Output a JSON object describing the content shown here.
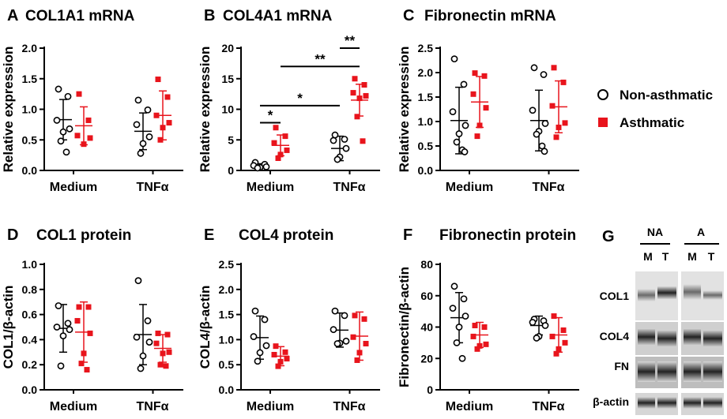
{
  "legend": {
    "non_asthmatic": "Non-asthmatic",
    "asthmatic": "Asthmatic",
    "colors": {
      "non_asthmatic": "#000000",
      "asthmatic": "#e8141c"
    }
  },
  "chart_data": [
    {
      "id": "A",
      "letter": "A",
      "type": "scatter",
      "title": "COL1A1 mRNA",
      "ylabel": "Relative expression",
      "ylim": [
        0,
        2.0
      ],
      "yticks": [
        "0.0",
        "0.5",
        "1.0",
        "1.5",
        "2.0"
      ],
      "categories": [
        "Medium",
        "TNFα"
      ],
      "series": [
        {
          "name": "Non-asthmatic",
          "group": "Medium",
          "mean": 0.83,
          "sd": 0.33,
          "points": [
            1.33,
            1.21,
            0.82,
            0.68,
            0.63,
            0.48,
            0.3
          ]
        },
        {
          "name": "Asthmatic",
          "group": "Medium",
          "mean": 0.73,
          "sd": 0.31,
          "points": [
            1.25,
            0.82,
            0.57,
            0.53,
            0.43
          ]
        },
        {
          "name": "Non-asthmatic",
          "group": "TNFα",
          "mean": 0.64,
          "sd": 0.3,
          "points": [
            1.15,
            0.99,
            0.75,
            0.55,
            0.44,
            0.28
          ]
        },
        {
          "name": "Asthmatic",
          "group": "TNFα",
          "mean": 0.9,
          "sd": 0.4,
          "points": [
            1.49,
            1.2,
            0.9,
            0.78,
            0.7,
            0.5
          ]
        }
      ],
      "significance": []
    },
    {
      "id": "B",
      "letter": "B",
      "type": "scatter",
      "title": "COL4A1 mRNA",
      "ylabel": "Relative expression",
      "ylim": [
        0,
        20
      ],
      "yticks": [
        "0",
        "5",
        "10",
        "15",
        "20"
      ],
      "categories": [
        "Medium",
        "TNFα"
      ],
      "series": [
        {
          "name": "Non-asthmatic",
          "group": "Medium",
          "mean": 0.8,
          "sd": 0.3,
          "points": [
            1.3,
            1.0,
            0.8,
            0.6,
            0.5,
            0.4
          ]
        },
        {
          "name": "Asthmatic",
          "group": "Medium",
          "mean": 4.1,
          "sd": 1.7,
          "points": [
            7.0,
            5.6,
            4.5,
            3.3,
            2.6,
            2.0
          ]
        },
        {
          "name": "Non-asthmatic",
          "group": "TNFα",
          "mean": 3.6,
          "sd": 2.0,
          "points": [
            5.8,
            5.1,
            4.9,
            3.6,
            2.2,
            1.8
          ]
        },
        {
          "name": "Asthmatic",
          "group": "TNFα",
          "mean": 11.5,
          "sd": 2.6,
          "points": [
            15.0,
            14.0,
            12.7,
            12.2,
            11.8,
            8.8,
            4.8
          ]
        }
      ],
      "significance": [
        {
          "from": 0,
          "to": 1,
          "label": "*",
          "y": 7.8
        },
        {
          "from": 0,
          "to": 2,
          "label": "*",
          "y": 10.6
        },
        {
          "from": 1,
          "to": 3,
          "label": "**",
          "y": 17.0
        },
        {
          "from": 2,
          "to": 3,
          "label": "**",
          "y": 20.0
        }
      ]
    },
    {
      "id": "C",
      "letter": "C",
      "type": "scatter",
      "title": "Fibronectin mRNA",
      "ylabel": "Relative expression",
      "ylim": [
        0,
        2.5
      ],
      "yticks": [
        "0.0",
        "0.5",
        "1.0",
        "1.5",
        "2.0",
        "2.5"
      ],
      "categories": [
        "Medium",
        "TNFα"
      ],
      "series": [
        {
          "name": "Non-asthmatic",
          "group": "Medium",
          "mean": 1.02,
          "sd": 0.68,
          "points": [
            2.28,
            1.76,
            1.2,
            0.92,
            0.75,
            0.58,
            0.42,
            0.38
          ]
        },
        {
          "name": "Asthmatic",
          "group": "Medium",
          "mean": 1.4,
          "sd": 0.52,
          "points": [
            1.99,
            1.93,
            1.56,
            1.28,
            0.92,
            0.7
          ]
        },
        {
          "name": "Non-asthmatic",
          "group": "TNFα",
          "mean": 1.02,
          "sd": 0.62,
          "points": [
            2.1,
            1.96,
            1.23,
            0.96,
            0.8,
            0.74,
            0.5,
            0.39
          ]
        },
        {
          "name": "Asthmatic",
          "group": "TNFα",
          "mean": 1.3,
          "sd": 0.53,
          "points": [
            2.1,
            1.8,
            1.32,
            0.97,
            0.88,
            0.68
          ]
        }
      ],
      "significance": []
    },
    {
      "id": "D",
      "letter": "D",
      "type": "scatter",
      "title": "COL1 protein",
      "ylabel": "COL1/β-actin",
      "ylim": [
        0,
        1.0
      ],
      "yticks": [
        "0.0",
        "0.2",
        "0.4",
        "0.6",
        "0.8",
        "1.0"
      ],
      "categories": [
        "Medium",
        "TNFα"
      ],
      "series": [
        {
          "name": "Non-asthmatic",
          "group": "Medium",
          "mean": 0.49,
          "sd": 0.19,
          "points": [
            0.67,
            0.53,
            0.5,
            0.48,
            0.43,
            0.19
          ]
        },
        {
          "name": "Asthmatic",
          "group": "Medium",
          "mean": 0.46,
          "sd": 0.24,
          "points": [
            0.66,
            0.66,
            0.55,
            0.45,
            0.29,
            0.21,
            0.16
          ]
        },
        {
          "name": "Non-asthmatic",
          "group": "TNFα",
          "mean": 0.44,
          "sd": 0.24,
          "points": [
            0.87,
            0.55,
            0.42,
            0.38,
            0.27,
            0.17
          ]
        },
        {
          "name": "Asthmatic",
          "group": "TNFα",
          "mean": 0.33,
          "sd": 0.11,
          "points": [
            0.45,
            0.44,
            0.37,
            0.3,
            0.29,
            0.2,
            0.19
          ]
        }
      ],
      "significance": []
    },
    {
      "id": "E",
      "letter": "E",
      "type": "scatter",
      "title": "COL4 protein",
      "ylabel": "COL4/β-actin",
      "ylim": [
        0,
        2.5
      ],
      "yticks": [
        "0.0",
        "0.5",
        "1.0",
        "1.5",
        "2.0",
        "2.5"
      ],
      "categories": [
        "Medium",
        "TNFα"
      ],
      "series": [
        {
          "name": "Non-asthmatic",
          "group": "Medium",
          "mean": 1.04,
          "sd": 0.43,
          "points": [
            1.57,
            1.4,
            1.06,
            0.88,
            0.74,
            0.57
          ]
        },
        {
          "name": "Asthmatic",
          "group": "Medium",
          "mean": 0.67,
          "sd": 0.19,
          "points": [
            0.87,
            0.75,
            0.7,
            0.62,
            0.56,
            0.47
          ]
        },
        {
          "name": "Non-asthmatic",
          "group": "TNFα",
          "mean": 1.19,
          "sd": 0.34,
          "points": [
            1.57,
            1.48,
            1.2,
            0.97,
            0.93,
            0.92
          ]
        },
        {
          "name": "Asthmatic",
          "group": "TNFα",
          "mean": 1.07,
          "sd": 0.48,
          "points": [
            1.48,
            1.41,
            1.05,
            0.92,
            0.74,
            0.59
          ]
        }
      ],
      "significance": []
    },
    {
      "id": "F",
      "letter": "F",
      "type": "scatter",
      "title": "Fibronectin protein",
      "ylabel": "Fibronectin/β-actin",
      "ylim": [
        0,
        80
      ],
      "yticks": [
        "0",
        "20",
        "40",
        "60",
        "80"
      ],
      "categories": [
        "Medium",
        "TNFα"
      ],
      "series": [
        {
          "name": "Non-asthmatic",
          "group": "Medium",
          "mean": 46,
          "sd": 16,
          "points": [
            66,
            58,
            52,
            47,
            40,
            30,
            20
          ]
        },
        {
          "name": "Asthmatic",
          "group": "Medium",
          "mean": 35,
          "sd": 8,
          "points": [
            41,
            40,
            34,
            29,
            28,
            26
          ]
        },
        {
          "name": "Non-asthmatic",
          "group": "TNFα",
          "mean": 41,
          "sd": 6,
          "points": [
            45,
            44,
            43,
            41,
            34,
            33
          ]
        },
        {
          "name": "Asthmatic",
          "group": "TNFα",
          "mean": 35,
          "sd": 11,
          "points": [
            47,
            38,
            34,
            30,
            26,
            23
          ]
        }
      ],
      "significance": []
    }
  ],
  "blot": {
    "letter": "G",
    "groups": [
      "NA",
      "A"
    ],
    "lanes": [
      "M",
      "T",
      "M",
      "T"
    ],
    "rows": [
      "COL1",
      "COL4",
      "FN",
      "β-actin"
    ]
  }
}
